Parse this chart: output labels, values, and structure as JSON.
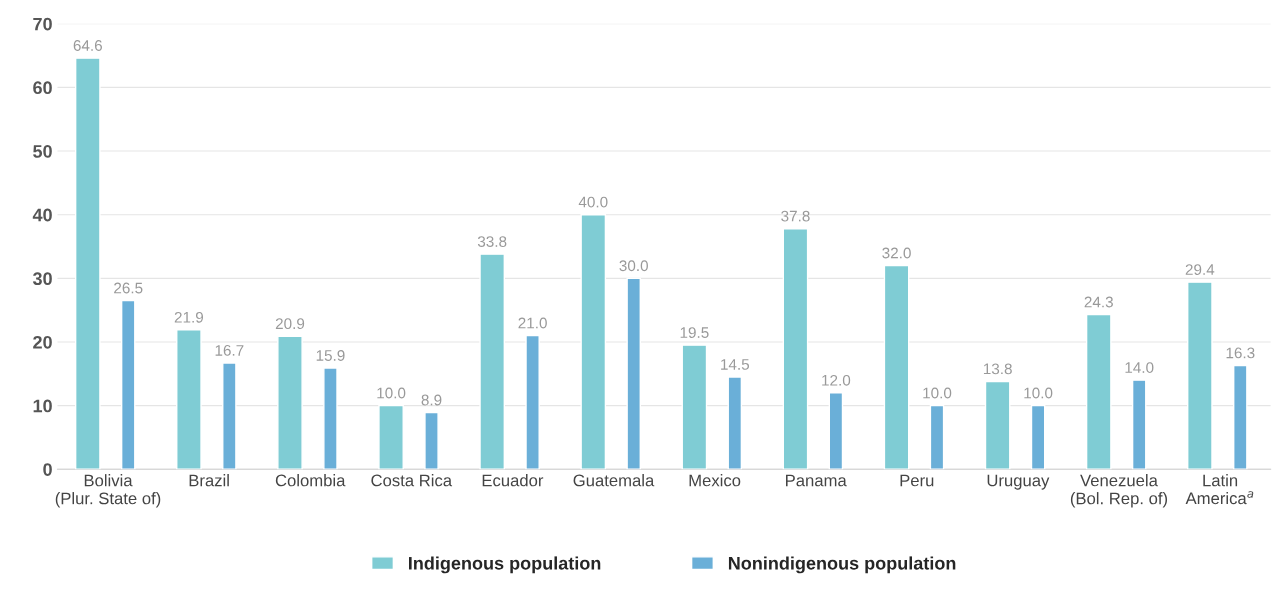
{
  "chart_data": {
    "type": "bar",
    "categories": [
      "Bolivia\n(Plur. State of)",
      "Brazil",
      "Colombia",
      "Costa Rica",
      "Ecuador",
      "Guatemala",
      "Mexico",
      "Panama",
      "Peru",
      "Uruguay",
      "Venezuela\n(Bol. Rep. of)",
      "Latin\nAmerica$^{a}$"
    ],
    "series": [
      {
        "name": "Indigenous population",
        "color": "#7fccd4",
        "values": [
          64.6,
          21.9,
          20.9,
          10,
          33.8,
          40,
          19.5,
          37.8,
          32,
          13.8,
          24.3,
          29.4
        ],
        "value_labels": [
          "64.6",
          "21.9",
          "20.9",
          "10.0",
          "33.8",
          "40.0",
          "19.5",
          "37.8",
          "32.0",
          "13.8",
          "24.3",
          "29.4"
        ]
      },
      {
        "name": "Nonindigenous population",
        "color": "#6aafd8",
        "values": [
          26.5,
          16.7,
          15.9,
          8.9,
          21,
          30,
          14.5,
          12,
          10,
          10,
          14,
          16.3
        ],
        "value_labels": [
          "26.5",
          "16.7",
          "15.9",
          "8.9",
          "21.0",
          "30.0",
          "14.5",
          "12.0",
          "10.0",
          "10.0",
          "14.0",
          "16.3"
        ]
      }
    ],
    "ylim": [
      0,
      70
    ],
    "yticks": [
      0,
      10,
      20,
      30,
      40,
      50,
      60,
      70
    ],
    "grid": "y",
    "legend": "bottom"
  }
}
